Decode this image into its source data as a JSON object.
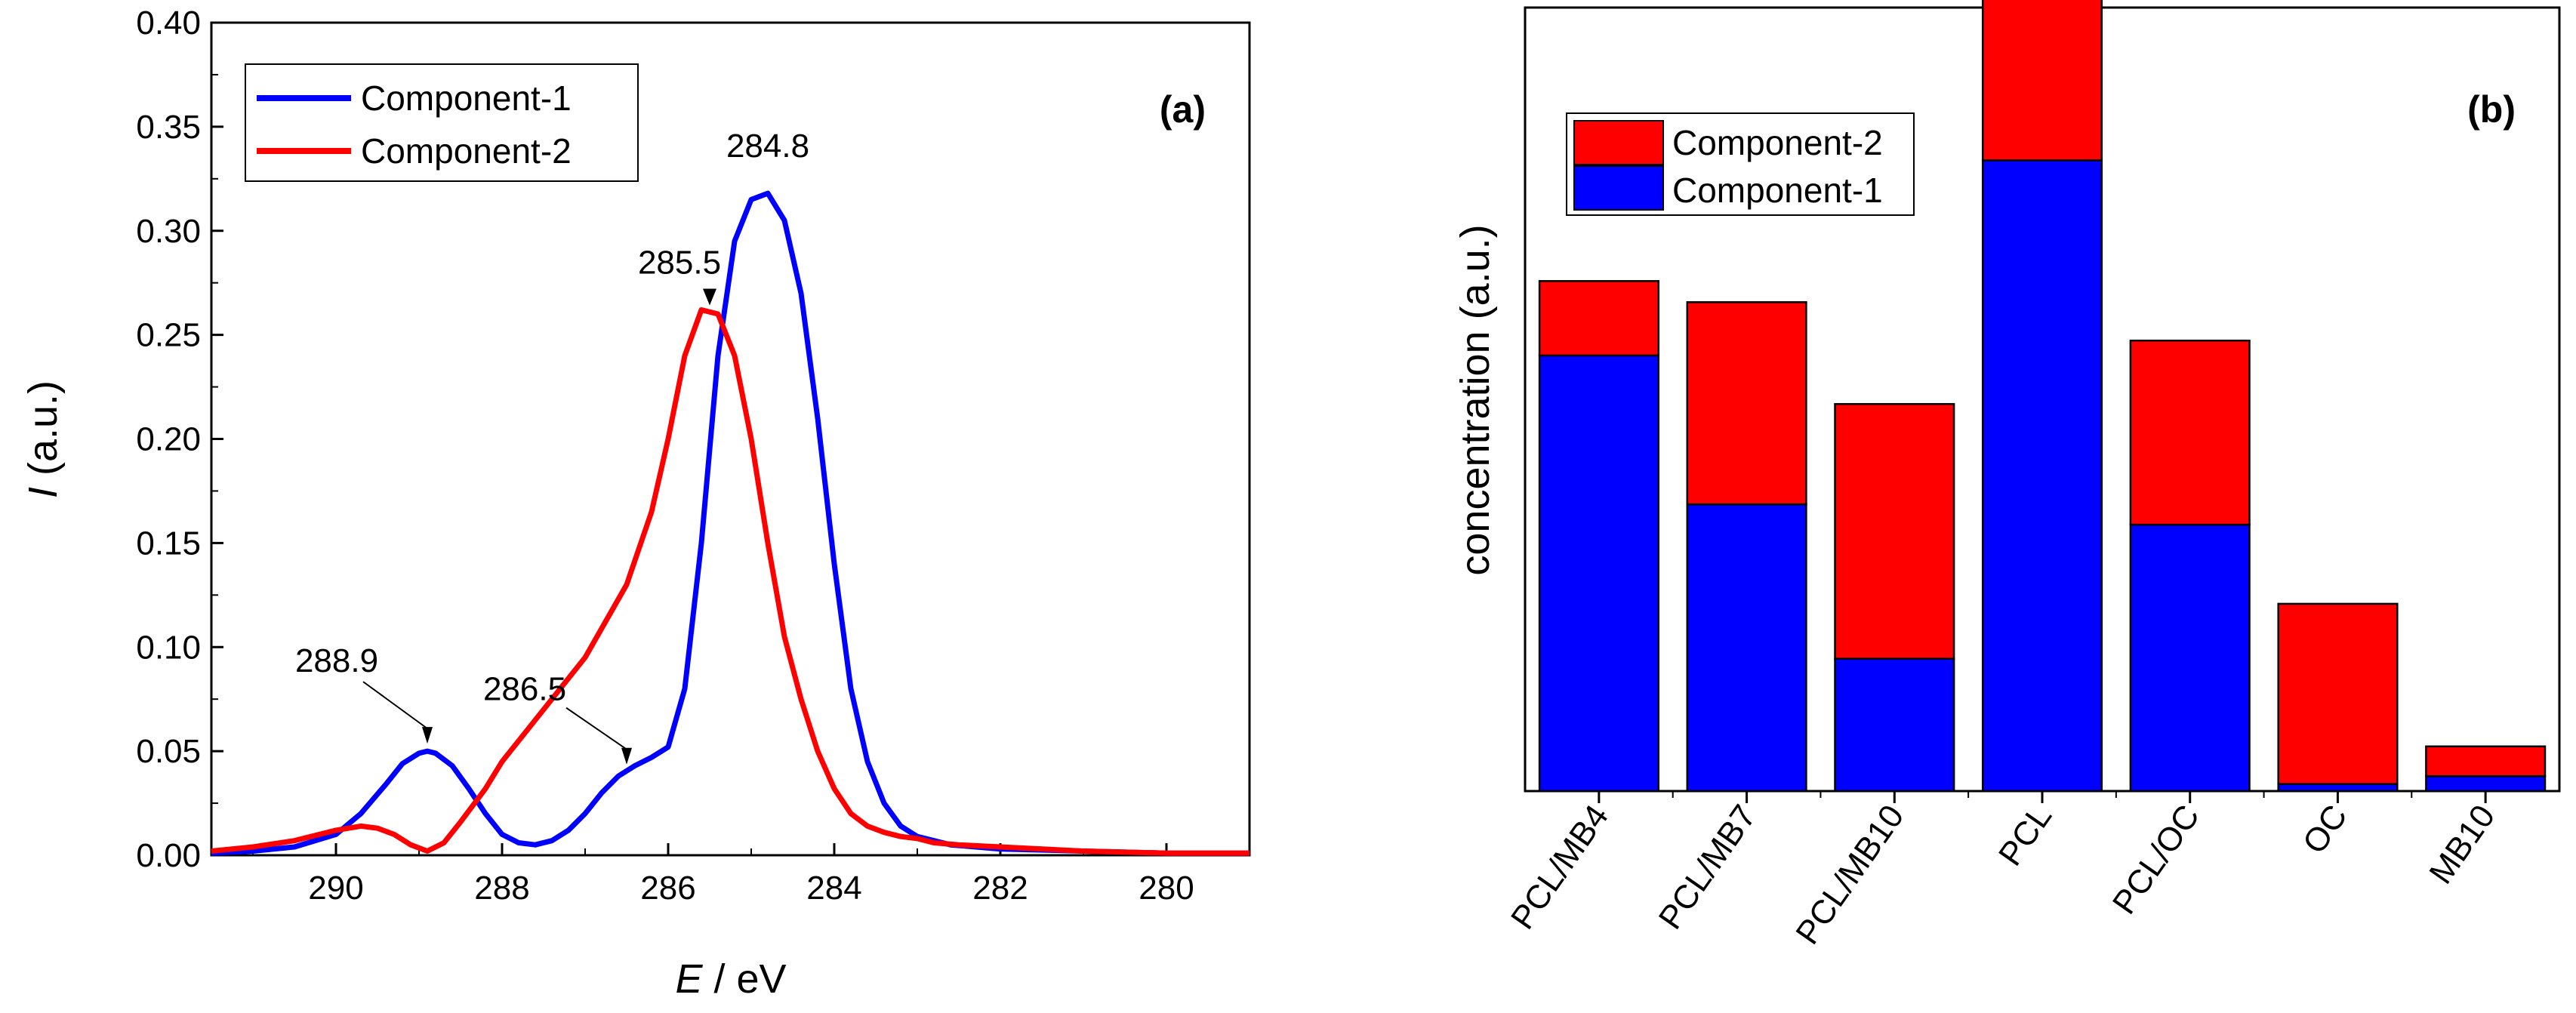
{
  "chart_data": [
    {
      "type": "line",
      "panel_label": "(a)",
      "xlabel_italic": "E",
      "xlabel_rest": " / eV",
      "ylabel_italic": "I",
      "ylabel_rest": " (a.u.)",
      "xlim": [
        291.5,
        279
      ],
      "ylim": [
        0,
        0.4
      ],
      "x_ticks": [
        "290",
        "288",
        "286",
        "284",
        "282",
        "280"
      ],
      "y_ticks": [
        "0.00",
        "0.05",
        "0.10",
        "0.15",
        "0.20",
        "0.25",
        "0.30",
        "0.35",
        "0.40"
      ],
      "legend": {
        "position": "top-left"
      },
      "series": [
        {
          "name": "Component-1",
          "color": "#0000ff",
          "x": [
            291.5,
            291.0,
            290.5,
            290.0,
            289.7,
            289.4,
            289.2,
            289.0,
            288.9,
            288.8,
            288.6,
            288.4,
            288.2,
            288.0,
            287.8,
            287.6,
            287.4,
            287.2,
            287.0,
            286.8,
            286.6,
            286.4,
            286.2,
            286.0,
            285.8,
            285.6,
            285.4,
            285.2,
            285.0,
            284.8,
            284.6,
            284.4,
            284.2,
            284.0,
            283.8,
            283.6,
            283.4,
            283.2,
            283.0,
            282.6,
            282.0,
            281.0,
            280.0,
            279.0
          ],
          "y": [
            0.001,
            0.002,
            0.004,
            0.01,
            0.02,
            0.034,
            0.044,
            0.049,
            0.05,
            0.049,
            0.043,
            0.032,
            0.02,
            0.01,
            0.006,
            0.005,
            0.007,
            0.012,
            0.02,
            0.03,
            0.038,
            0.043,
            0.047,
            0.052,
            0.08,
            0.15,
            0.24,
            0.295,
            0.315,
            0.318,
            0.305,
            0.27,
            0.21,
            0.14,
            0.08,
            0.045,
            0.025,
            0.014,
            0.009,
            0.005,
            0.003,
            0.002,
            0.001,
            0.001
          ]
        },
        {
          "name": "Component-2",
          "color": "#ff0000",
          "x": [
            291.5,
            291.0,
            290.5,
            290.0,
            289.7,
            289.5,
            289.3,
            289.1,
            288.9,
            288.7,
            288.5,
            288.2,
            288.0,
            287.5,
            287.0,
            286.5,
            286.2,
            286.0,
            285.8,
            285.6,
            285.4,
            285.2,
            285.0,
            284.8,
            284.6,
            284.4,
            284.2,
            284.0,
            283.8,
            283.6,
            283.4,
            283.2,
            283.0,
            282.8,
            282.5,
            282.0,
            281.0,
            280.0,
            279.0
          ],
          "y": [
            0.002,
            0.004,
            0.007,
            0.012,
            0.014,
            0.013,
            0.01,
            0.005,
            0.002,
            0.006,
            0.016,
            0.032,
            0.045,
            0.07,
            0.095,
            0.13,
            0.165,
            0.2,
            0.24,
            0.262,
            0.26,
            0.24,
            0.2,
            0.15,
            0.105,
            0.075,
            0.05,
            0.032,
            0.02,
            0.014,
            0.011,
            0.009,
            0.008,
            0.006,
            0.005,
            0.004,
            0.002,
            0.001,
            0.001
          ]
        }
      ],
      "annotations": [
        {
          "text": "284.8",
          "x": 284.8,
          "y": 0.318
        },
        {
          "text": "285.5",
          "x": 285.5,
          "y": 0.262
        },
        {
          "text": "288.9",
          "x": 288.9,
          "y": 0.05
        },
        {
          "text": "286.5",
          "x": 286.5,
          "y": 0.04
        }
      ]
    },
    {
      "type": "bar",
      "stacked": true,
      "panel_label": "(b)",
      "ylabel": "concentration (a.u.)",
      "ylim": [
        0,
        1.0
      ],
      "y_ticks_shown": false,
      "legend": {
        "position": "top-left"
      },
      "categories": [
        "PCL/MB4",
        "PCL/MB7",
        "PCL/MB10",
        "PCL",
        "PCL/OC",
        "OC",
        "MB10"
      ],
      "series": [
        {
          "name": "Component-1",
          "color": "#0000ff",
          "values": [
            0.556,
            0.366,
            0.169,
            0.805,
            0.34,
            0.009,
            0.019
          ]
        },
        {
          "name": "Component-2",
          "color": "#ff0000",
          "values": [
            0.095,
            0.258,
            0.325,
            0.213,
            0.235,
            0.23,
            0.038
          ]
        }
      ],
      "legend_order": [
        "Component-2",
        "Component-1"
      ]
    }
  ]
}
